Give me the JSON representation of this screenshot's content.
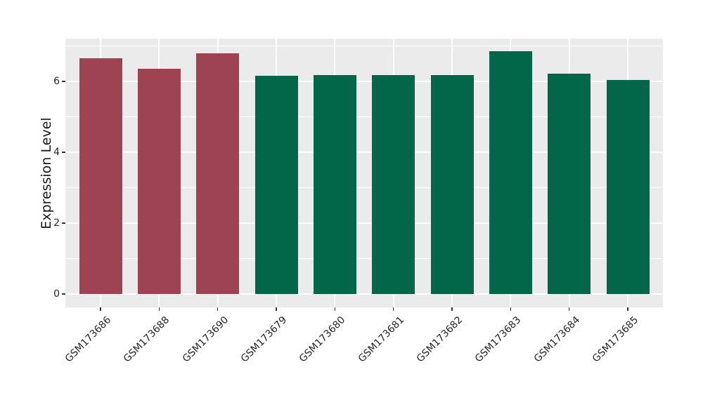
{
  "chart_data": {
    "type": "bar",
    "title": "",
    "xlabel": "",
    "ylabel": "Expression Level",
    "categories": [
      "GSM173686",
      "GSM173688",
      "GSM173690",
      "GSM173679",
      "GSM173680",
      "GSM173681",
      "GSM173682",
      "GSM173683",
      "GSM173684",
      "GSM173685"
    ],
    "values": [
      6.65,
      6.35,
      6.78,
      6.15,
      6.17,
      6.17,
      6.17,
      6.84,
      6.22,
      6.04
    ],
    "bar_colors": [
      "#9E4352",
      "#9E4352",
      "#9E4352",
      "#026749",
      "#026749",
      "#026749",
      "#026749",
      "#026749",
      "#026749",
      "#026749"
    ],
    "yticks": [
      0,
      2,
      4,
      6
    ],
    "yticks_minor": [
      1,
      3,
      5,
      7
    ],
    "ylim": [
      -0.37,
      7.2
    ],
    "legend": "none",
    "grid": {
      "panel_background": "#EBEBEB",
      "major_line_color": "#FFFFFF",
      "minor_line_color": "#FFFFFF"
    },
    "axis": {
      "tick_color": "#333333",
      "tick_label_color": "#262626"
    }
  }
}
